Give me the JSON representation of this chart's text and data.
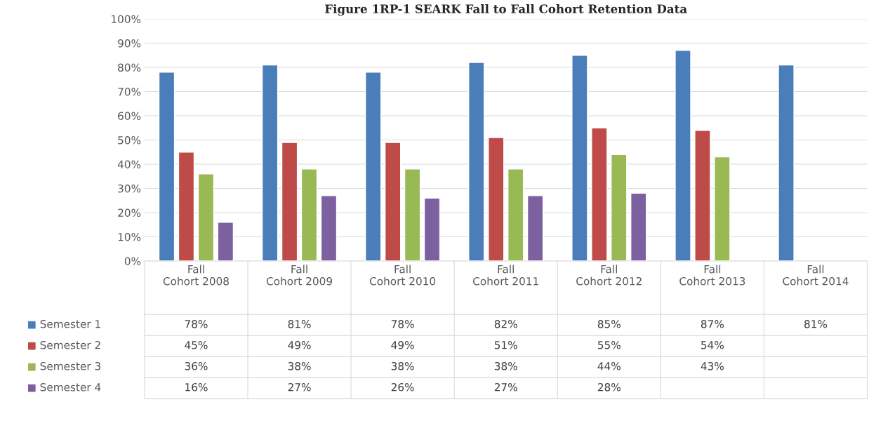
{
  "chart_data": {
    "type": "bar",
    "title": "Figure 1RP-1 SEARK Fall to Fall Cohort Retention Data",
    "categories": [
      "Fall\nCohort 2008",
      "Fall\nCohort 2009",
      "Fall\nCohort 2010",
      "Fall\nCohort 2011",
      "Fall\nCohort 2012",
      "Fall\nCohort 2013",
      "Fall\nCohort 2014"
    ],
    "series": [
      {
        "name": "Semester 1",
        "color": "#4a7ebb",
        "values": [
          78,
          81,
          78,
          82,
          85,
          87,
          81
        ],
        "value_labels": [
          "78%",
          "81%",
          "78%",
          "82%",
          "85%",
          "87%",
          "81%"
        ]
      },
      {
        "name": "Semester 2",
        "color": "#be4b48",
        "values": [
          45,
          49,
          49,
          51,
          55,
          54,
          null
        ],
        "value_labels": [
          "45%",
          "49%",
          "49%",
          "51%",
          "55%",
          "54%",
          null
        ]
      },
      {
        "name": "Semester 3",
        "color": "#98b954",
        "values": [
          36,
          38,
          38,
          38,
          44,
          43,
          null
        ],
        "value_labels": [
          "36%",
          "38%",
          "38%",
          "38%",
          "44%",
          "43%",
          null
        ]
      },
      {
        "name": "Semester 4",
        "color": "#7d60a0",
        "values": [
          16,
          27,
          26,
          27,
          28,
          null,
          null
        ],
        "value_labels": [
          "16%",
          "27%",
          "26%",
          "27%",
          "28%",
          null,
          null
        ]
      }
    ],
    "ylim": [
      0,
      100
    ],
    "yticks": [
      {
        "value": 0,
        "label": "0%"
      },
      {
        "value": 10,
        "label": "10%"
      },
      {
        "value": 20,
        "label": "20%"
      },
      {
        "value": 30,
        "label": "30%"
      },
      {
        "value": 40,
        "label": "40%"
      },
      {
        "value": 50,
        "label": "50%"
      },
      {
        "value": 60,
        "label": "60%"
      },
      {
        "value": 70,
        "label": "70%"
      },
      {
        "value": 80,
        "label": "80%"
      },
      {
        "value": 90,
        "label": "90%"
      },
      {
        "value": 100,
        "label": "100%"
      }
    ],
    "grid": "y",
    "legend": "bottom"
  }
}
